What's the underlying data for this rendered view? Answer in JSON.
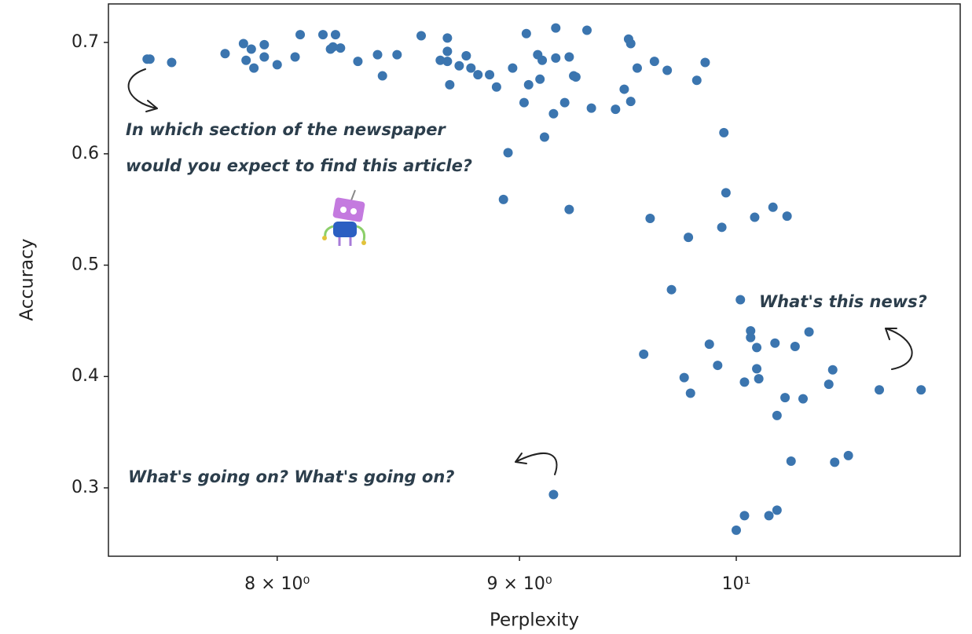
{
  "chart_data": {
    "type": "scatter",
    "xlabel": "Perplexity",
    "ylabel": "Accuracy",
    "xscale": "log",
    "color": "#3b75af",
    "xlim": [
      7.37,
      11.15
    ],
    "ylim": [
      0.2386,
      0.7346
    ],
    "xticks": [
      {
        "value": 8,
        "label": "8 × 10⁰"
      },
      {
        "value": 9,
        "label": "9 × 10⁰"
      },
      {
        "value": 10,
        "label": "10¹"
      }
    ],
    "yticks": [
      0.3,
      0.4,
      0.5,
      0.6,
      0.7
    ],
    "annotations": [
      [
        "In which section of the newspaper",
        "would you expect to find this article?"
      ],
      [
        "What's this news?"
      ],
      [
        "What's going on? What's going on?"
      ]
    ],
    "x": [
      7.51,
      7.52,
      7.6,
      7.8,
      7.87,
      7.9,
      7.95,
      7.88,
      7.91,
      7.95,
      8.0,
      8.07,
      8.09,
      8.18,
      8.23,
      8.21,
      8.22,
      8.25,
      8.32,
      8.4,
      8.42,
      8.48,
      8.58,
      8.66,
      8.69,
      8.69,
      8.69,
      8.7,
      8.74,
      8.77,
      8.79,
      8.82,
      8.87,
      8.9,
      8.95,
      8.93,
      9.03,
      8.97,
      9.02,
      9.04,
      9.08,
      9.09,
      9.1,
      9.16,
      9.16,
      9.15,
      9.11,
      9.2,
      9.22,
      9.24,
      9.25,
      9.3,
      9.32,
      9.22,
      9.43,
      9.47,
      9.49,
      9.5,
      9.5,
      9.53,
      9.61,
      9.67,
      9.81,
      9.85,
      9.94,
      9.95,
      9.77,
      9.93,
      9.59,
      9.69,
      10.09,
      10.18,
      10.25,
      10.02,
      10.07,
      10.07,
      10.1,
      10.1,
      10.11,
      10.04,
      10.19,
      10.29,
      10.36,
      9.87,
      9.91,
      9.75,
      9.78,
      9.56,
      10.24,
      10.33,
      10.2,
      10.46,
      10.48,
      10.72,
      10.94,
      10.27,
      10.49,
      10.56,
      9.15,
      10.0,
      10.04,
      10.16,
      10.2
    ],
    "values": [
      0.685,
      0.685,
      0.682,
      0.69,
      0.699,
      0.694,
      0.698,
      0.684,
      0.677,
      0.687,
      0.68,
      0.687,
      0.707,
      0.707,
      0.707,
      0.694,
      0.696,
      0.695,
      0.683,
      0.689,
      0.67,
      0.689,
      0.706,
      0.684,
      0.704,
      0.692,
      0.683,
      0.662,
      0.679,
      0.688,
      0.677,
      0.671,
      0.671,
      0.66,
      0.601,
      0.559,
      0.708,
      0.677,
      0.646,
      0.662,
      0.689,
      0.667,
      0.684,
      0.713,
      0.686,
      0.636,
      0.615,
      0.646,
      0.687,
      0.67,
      0.669,
      0.711,
      0.641,
      0.55,
      0.64,
      0.658,
      0.703,
      0.699,
      0.647,
      0.677,
      0.683,
      0.675,
      0.666,
      0.682,
      0.619,
      0.565,
      0.525,
      0.534,
      0.542,
      0.478,
      0.543,
      0.552,
      0.544,
      0.469,
      0.441,
      0.435,
      0.426,
      0.407,
      0.398,
      0.395,
      0.43,
      0.427,
      0.44,
      0.429,
      0.41,
      0.399,
      0.385,
      0.42,
      0.381,
      0.38,
      0.365,
      0.393,
      0.406,
      0.388,
      0.388,
      0.324,
      0.323,
      0.329,
      0.294,
      0.262,
      0.275,
      0.275,
      0.28
    ]
  }
}
